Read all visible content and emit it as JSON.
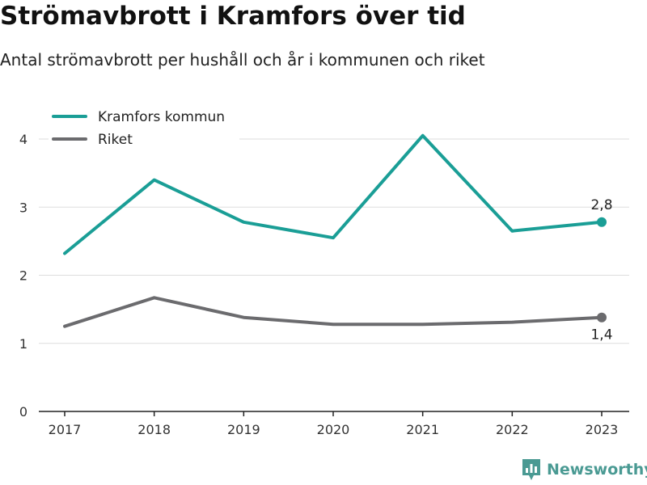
{
  "title": "Strömavbrott i Kramfors över tid",
  "subtitle": "Antal strömavbrott per hushåll och år i kommunen och riket",
  "brand": {
    "name": "Newsworthy",
    "icon": "newsworthy-logo-icon",
    "color": "#4a9a93"
  },
  "chart_data": {
    "type": "line",
    "x": [
      "2017",
      "2018",
      "2019",
      "2020",
      "2021",
      "2022",
      "2023"
    ],
    "ylim": [
      0,
      4.5
    ],
    "yticks": [
      "0",
      "1",
      "2",
      "3",
      "4"
    ],
    "grid": true,
    "legend_position": "top-left",
    "series": [
      {
        "name": "Kramfors kommun",
        "color": "#1a9e96",
        "values": [
          2.32,
          3.4,
          2.78,
          2.55,
          4.05,
          2.65,
          2.78
        ],
        "end_label": "2,8"
      },
      {
        "name": "Riket",
        "color": "#6b6b6e",
        "values": [
          1.25,
          1.67,
          1.38,
          1.28,
          1.28,
          1.31,
          1.38
        ],
        "end_label": "1,4"
      }
    ]
  }
}
